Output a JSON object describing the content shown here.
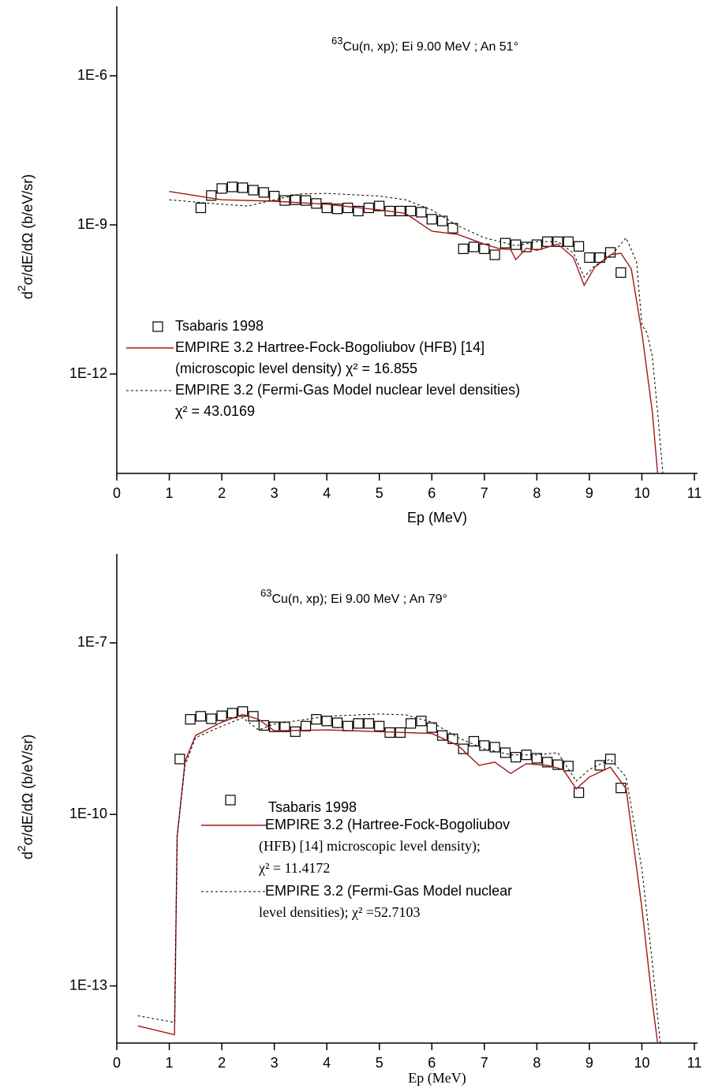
{
  "chart_data": [
    {
      "type": "scatter-line",
      "log_y": true,
      "title_sup": "63",
      "title": "Cu(n, xp); Ei 9.00 MeV ; An 51°",
      "y_label": "d",
      "y_label_sup": "2",
      "y_label_rest": "σ/dE/dΩ (b/eV/sr)",
      "x_label": "Ep (MeV)",
      "xlim": [
        0,
        11
      ],
      "xticks": [
        0,
        1,
        2,
        3,
        4,
        5,
        6,
        7,
        8,
        9,
        10,
        11
      ],
      "ylim": [
        1e-14,
        2.5e-05
      ],
      "yticks": [
        {
          "value": 1e-06,
          "label": "1E-6"
        },
        {
          "value": 1e-09,
          "label": "1E-9"
        },
        {
          "value": 1e-12,
          "label": "1E-12"
        }
      ],
      "series": [
        {
          "name": "Tsabaris 1998",
          "marker": "square",
          "color": "#000000",
          "x": [
            1.6,
            1.8,
            2.0,
            2.2,
            2.4,
            2.6,
            2.8,
            3.0,
            3.2,
            3.4,
            3.6,
            3.8,
            4.0,
            4.2,
            4.4,
            4.6,
            4.8,
            5.0,
            5.2,
            5.4,
            5.6,
            5.8,
            6.0,
            6.2,
            6.4,
            6.6,
            6.8,
            7.0,
            7.2,
            7.4,
            7.6,
            7.8,
            8.0,
            8.2,
            8.4,
            8.6,
            8.8,
            9.0,
            9.2,
            9.4,
            9.6
          ],
          "values": [
            2.2e-09,
            3.9e-09,
            5.4e-09,
            5.8e-09,
            5.6e-09,
            5e-09,
            4.5e-09,
            3.8e-09,
            3.1e-09,
            3.2e-09,
            3.1e-09,
            2.7e-09,
            2.2e-09,
            2.1e-09,
            2.2e-09,
            1.9e-09,
            2.2e-09,
            2.4e-09,
            1.9e-09,
            1.9e-09,
            1.9e-09,
            1.8e-09,
            1.3e-09,
            1.2e-09,
            8.6e-10,
            3.3e-10,
            3.6e-10,
            3.3e-10,
            2.5e-10,
            4.3e-10,
            4e-10,
            3.6e-10,
            4e-10,
            4.6e-10,
            4.6e-10,
            4.6e-10,
            3.7e-10,
            2.2e-10,
            2.2e-10,
            2.8e-10,
            1.1e-10
          ]
        },
        {
          "name": "EMPIRE 3.2 Hartree-Fock-Bogoliubov (HFB) [14]",
          "name_continued": [
            "(microscopic level density) χ² = 16.855"
          ],
          "line": "solid",
          "color": "#a01818",
          "x": [
            1,
            2,
            3,
            4,
            5,
            5.5,
            6,
            6.5,
            7,
            7.3,
            7.5,
            7.6,
            7.8,
            8,
            8.4,
            8.7,
            8.9,
            9.1,
            9.4,
            9.6,
            9.8,
            10.0,
            10.2,
            10.3
          ],
          "values": [
            4.7e-09,
            3.2e-09,
            3e-09,
            2.6e-09,
            2e-09,
            1.7e-09,
            7.5e-10,
            6.4e-10,
            4.1e-10,
            3.3e-10,
            3.2e-10,
            2e-10,
            3.4e-10,
            3.1e-10,
            4.1e-10,
            2.2e-10,
            6.1e-11,
            1.4e-10,
            2.5e-10,
            2.7e-10,
            1.3e-10,
            6.7e-12,
            1.7e-13,
            1e-14
          ]
        },
        {
          "name": "EMPIRE 3.2 (Fermi-Gas Model nuclear level densities)",
          "name_continued": [
            "χ² = 43.0169"
          ],
          "line": "dashed",
          "color": "#000000",
          "x": [
            1,
            2,
            2.5,
            3,
            3.5,
            4,
            5,
            5.5,
            6,
            6.5,
            7,
            7.3,
            7.6,
            8,
            8.4,
            8.7,
            8.9,
            9.1,
            9.4,
            9.7,
            9.9,
            10.0,
            10.1,
            10.2,
            10.3,
            10.4
          ],
          "values": [
            3.2e-09,
            2.6e-09,
            2.4e-09,
            3.2e-09,
            4.2e-09,
            4.3e-09,
            3.8e-09,
            3.2e-09,
            2e-09,
            9.6e-10,
            5.5e-10,
            4.6e-10,
            3.8e-10,
            4.6e-10,
            4.6e-10,
            2.7e-10,
            8.9e-11,
            1.5e-10,
            2.3e-10,
            5.5e-10,
            1.8e-10,
            9.6e-12,
            6.7e-12,
            2.2e-12,
            1.7e-13,
            1e-14
          ]
        }
      ]
    },
    {
      "type": "scatter-line",
      "log_y": true,
      "title_sup": "63",
      "title": "Cu(n, xp); Ei 9.00 MeV ; An 79°",
      "y_label": "d",
      "y_label_sup": "2",
      "y_label_rest": "σ/dE/dΩ (b/eV/sr)",
      "x_label": "Ep (MeV)",
      "xlim": [
        0,
        11
      ],
      "xticks": [
        0,
        1,
        2,
        3,
        4,
        5,
        6,
        7,
        8,
        9,
        10,
        11
      ],
      "ylim": [
        1e-14,
        3.6e-06
      ],
      "yticks": [
        {
          "value": 1e-07,
          "label": "1E-7"
        },
        {
          "value": 1e-10,
          "label": "1E-10"
        },
        {
          "value": 1e-13,
          "label": "1E-13"
        }
      ],
      "series": [
        {
          "name": "Tsabaris 1998",
          "marker": "square",
          "color": "#000000",
          "x": [
            1.2,
            1.4,
            1.6,
            1.8,
            2.0,
            2.2,
            2.4,
            2.6,
            2.8,
            3.0,
            3.2,
            3.4,
            3.6,
            3.8,
            4.0,
            4.2,
            4.4,
            4.6,
            4.8,
            5.0,
            5.2,
            5.4,
            5.6,
            5.8,
            6.0,
            6.2,
            6.4,
            6.6,
            6.8,
            7.0,
            7.2,
            7.4,
            7.6,
            7.8,
            8.0,
            8.2,
            8.4,
            8.6,
            8.8,
            9.2,
            9.4,
            9.6
          ],
          "values": [
            9.3e-10,
            4.6e-09,
            5.2e-09,
            4.7e-09,
            5.3e-09,
            5.9e-09,
            6.3e-09,
            5.2e-09,
            3.6e-09,
            3.4e-09,
            3.4e-09,
            2.8e-09,
            3.5e-09,
            4.6e-09,
            4.3e-09,
            4e-09,
            3.5e-09,
            3.9e-09,
            3.9e-09,
            3.5e-09,
            2.7e-09,
            2.7e-09,
            3.9e-09,
            4.3e-09,
            3.3e-09,
            2.4e-09,
            2.1e-09,
            1.4e-09,
            1.9e-09,
            1.6e-09,
            1.5e-09,
            1.2e-09,
            1e-09,
            1.1e-09,
            9.6e-10,
            8.2e-10,
            7.4e-10,
            7e-10,
            2.4e-10,
            7.2e-10,
            9.3e-10,
            2.9e-10
          ]
        },
        {
          "name": "EMPIRE 3.2 (Hartree-Fock-Bogoliubov",
          "name_continued": [
            "(HFB) [14] microscopic level density);",
            "χ² = 11.4172"
          ],
          "line": "solid",
          "color": "#a01818",
          "x": [
            0.4,
            1.1,
            1.15,
            1.3,
            1.5,
            2,
            2.4,
            2.7,
            3,
            4,
            5,
            6,
            6.5,
            6.9,
            7.2,
            7.5,
            7.8,
            8.2,
            8.5,
            8.75,
            9.0,
            9.4,
            9.7,
            10,
            10.2,
            10.3
          ],
          "values": [
            2e-14,
            1.4e-14,
            4.1e-11,
            8.4e-10,
            2.4e-09,
            4.1e-09,
            5.6e-09,
            4.6e-09,
            2.9e-09,
            3e-09,
            2.8e-09,
            2.6e-09,
            1.6e-09,
            7.2e-10,
            8.2e-10,
            5.2e-10,
            7.7e-10,
            7.2e-10,
            6.1e-10,
            2.8e-10,
            4.5e-10,
            6.7e-10,
            2.8e-10,
            2.3e-12,
            5.1e-14,
            1e-14
          ]
        },
        {
          "name": "EMPIRE 3.2 (Fermi-Gas Model nuclear",
          "name_continued": [
            "level densities); χ² =52.7103"
          ],
          "line": "dashed",
          "color": "#000000",
          "x": [
            0.4,
            1.1,
            1.15,
            1.3,
            1.5,
            2,
            2.4,
            2.7,
            3,
            4,
            5,
            5.5,
            6,
            6.5,
            7,
            7.5,
            8,
            8.4,
            8.75,
            9,
            9.4,
            9.7,
            10,
            10.2,
            10.35
          ],
          "values": [
            3e-14,
            2.3e-14,
            4.1e-11,
            7.2e-10,
            2.2e-09,
            3.5e-09,
            4.9e-09,
            3e-09,
            3.8e-09,
            5.2e-09,
            5.7e-09,
            5.5e-09,
            4.1e-09,
            2.2e-09,
            1.4e-09,
            1.1e-09,
            1.1e-09,
            1.2e-09,
            3.8e-10,
            6.1e-10,
            9.3e-10,
            4.5e-10,
            1.1e-11,
            2.5e-13,
            1e-14
          ]
        }
      ]
    }
  ]
}
